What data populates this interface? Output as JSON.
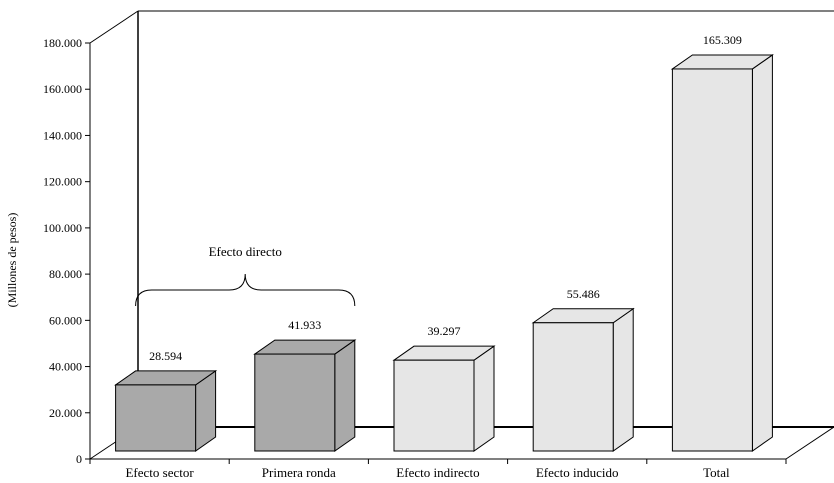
{
  "chart_data": {
    "type": "bar",
    "style": "3d",
    "categories": [
      "Efecto sector",
      "Primera ronda",
      "Efecto indirecto",
      "Efecto inducido",
      "Total"
    ],
    "values": [
      28594,
      41933,
      39297,
      55486,
      165309
    ],
    "value_labels": [
      "28.594",
      "41.933",
      "39.297",
      "55.486",
      "165.309"
    ],
    "bar_colors": [
      "#a9a9a9",
      "#a9a9a9",
      "#e6e6e6",
      "#e6e6e6",
      "#e6e6e6"
    ],
    "ylabel": "(Millones de pesos)",
    "ylim": [
      0,
      180000
    ],
    "yticks": [
      0,
      20000,
      40000,
      60000,
      80000,
      100000,
      120000,
      140000,
      160000,
      180000
    ],
    "ytick_labels": [
      "0",
      "20.000",
      "40.000",
      "60.000",
      "80.000",
      "100.000",
      "120.000",
      "140.000",
      "160.000",
      "180.000"
    ],
    "grid": false,
    "annotation": {
      "text": "Efecto directo",
      "spans_categories": [
        "Efecto sector",
        "Primera ronda"
      ]
    }
  }
}
